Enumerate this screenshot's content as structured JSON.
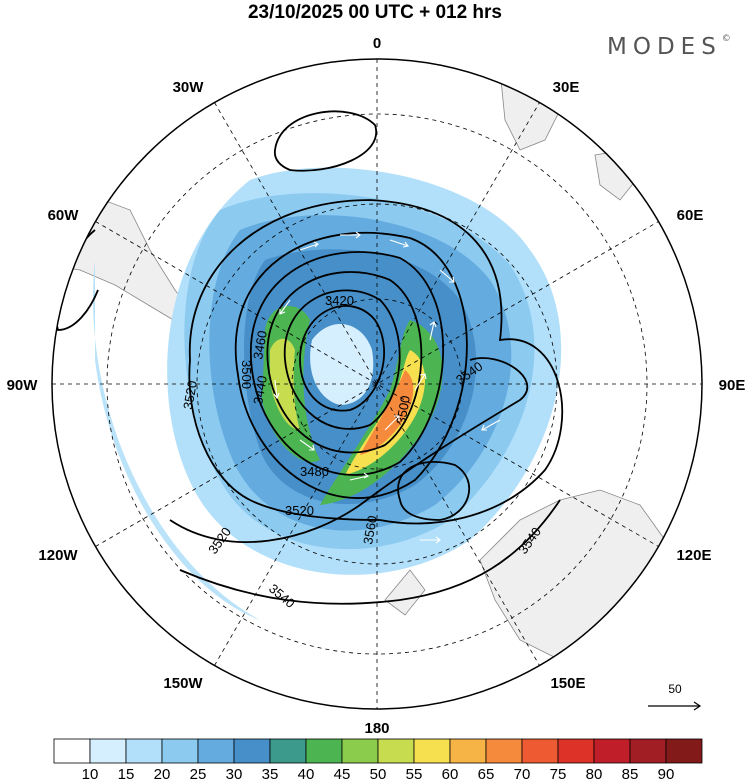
{
  "title": "23/10/2025  00 UTC  + 012 hrs",
  "brand": "MODES",
  "brand_mark": "©",
  "longitude_labels": {
    "north": "0",
    "n30w": "30W",
    "n30e": "30E",
    "n60w": "60W",
    "n60e": "60E",
    "w90": "90W",
    "e90": "90E",
    "s120w": "120W",
    "s120e": "120E",
    "s150w": "150W",
    "s150e": "150E",
    "south": "180"
  },
  "contour_labels": [
    "3420",
    "3440",
    "3460",
    "3480",
    "3500",
    "3520",
    "3540",
    "3560"
  ],
  "contour_label_items": [
    {
      "text": "3420"
    },
    {
      "text": "3440"
    },
    {
      "text": "3460"
    },
    {
      "text": "3480"
    },
    {
      "text": "3500"
    },
    {
      "text": "3520"
    },
    {
      "text": "3520"
    },
    {
      "text": "3520"
    },
    {
      "text": "3540"
    },
    {
      "text": "3540"
    },
    {
      "text": "3540"
    },
    {
      "text": "3560"
    },
    {
      "text": "3500"
    }
  ],
  "reference_vector": {
    "label": "50"
  },
  "colorbar": {
    "ticks": [
      "10",
      "15",
      "20",
      "25",
      "30",
      "35",
      "40",
      "45",
      "50",
      "55",
      "60",
      "65",
      "70",
      "75",
      "80",
      "85",
      "90"
    ],
    "colors": [
      "#ffffff",
      "#d6efff",
      "#b2e0fa",
      "#8ccaf0",
      "#64ace0",
      "#468fc8",
      "#3c9a8c",
      "#4cb450",
      "#8ccc4c",
      "#c8dc50",
      "#f6e050",
      "#f6b446",
      "#f68a3c",
      "#ee5a32",
      "#dc3228",
      "#c01e28",
      "#a01e24",
      "#821a1a"
    ]
  },
  "colors": {
    "land": "#efefef",
    "coast": "#888888",
    "contour": "#000000",
    "grid": "#000000",
    "vector": "#ffffff"
  }
}
